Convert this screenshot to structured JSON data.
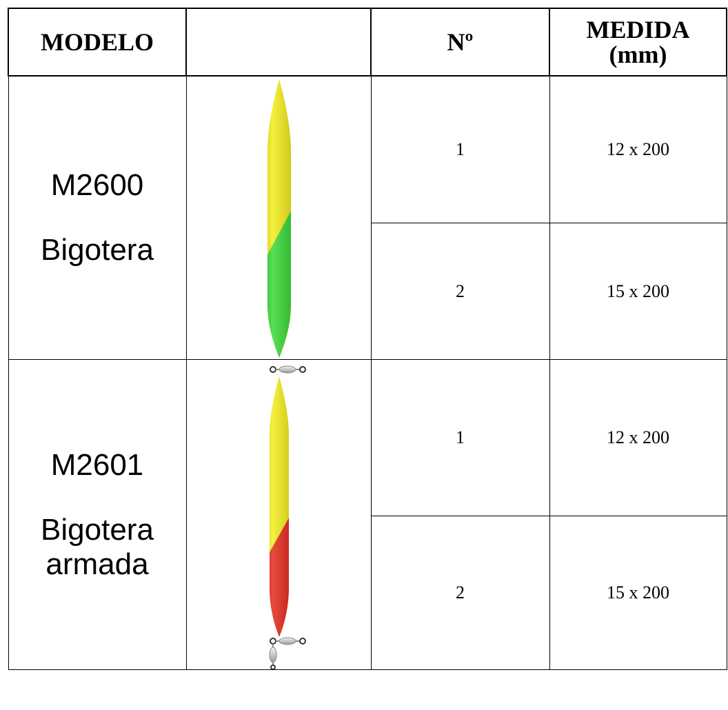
{
  "header": {
    "modelo": "MODELO",
    "image": "",
    "numero": "Nº",
    "medida_line1": "MEDIDA",
    "medida_line2": "(mm)"
  },
  "products": [
    {
      "code": "M2600",
      "name": "Bigotera",
      "image_icon": "float-yellow-green-icon",
      "colors": [
        "#f2ea00",
        "#22d41e"
      ],
      "variants": [
        {
          "number": "1",
          "size": "12 x 200"
        },
        {
          "number": "2",
          "size": "15 x 200"
        }
      ]
    },
    {
      "code": "M2601",
      "name_line1": "Bigotera",
      "name_line2": "armada",
      "image_icon": "armed-float-yellow-red-icon",
      "colors": [
        "#f2ea00",
        "#e00f00"
      ],
      "variants": [
        {
          "number": "1",
          "size": "12 x 200"
        },
        {
          "number": "2",
          "size": "15 x 200"
        }
      ]
    }
  ]
}
